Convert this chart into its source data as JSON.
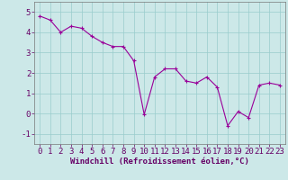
{
  "x": [
    0,
    1,
    2,
    3,
    4,
    5,
    6,
    7,
    8,
    9,
    10,
    11,
    12,
    13,
    14,
    15,
    16,
    17,
    18,
    19,
    20,
    21,
    22,
    23
  ],
  "y": [
    4.8,
    4.6,
    4.0,
    4.3,
    4.2,
    3.8,
    3.5,
    3.3,
    3.3,
    2.6,
    -0.05,
    1.8,
    2.2,
    2.2,
    1.6,
    1.5,
    1.8,
    1.3,
    -0.6,
    0.1,
    -0.2,
    1.4,
    1.5,
    1.4
  ],
  "line_color": "#990099",
  "marker": "+",
  "bg_color": "#cce8e8",
  "grid_color": "#99cccc",
  "xlabel": "Windchill (Refroidissement éolien,°C)",
  "ylim": [
    -1.5,
    5.5
  ],
  "xlim": [
    -0.5,
    23.5
  ],
  "yticks": [
    -1,
    0,
    1,
    2,
    3,
    4,
    5
  ],
  "xticks": [
    0,
    1,
    2,
    3,
    4,
    5,
    6,
    7,
    8,
    9,
    10,
    11,
    12,
    13,
    14,
    15,
    16,
    17,
    18,
    19,
    20,
    21,
    22,
    23
  ],
  "xlabel_fontsize": 6.5,
  "tick_fontsize": 6.5,
  "linewidth": 0.8,
  "markersize": 3,
  "markeredgewidth": 0.8
}
